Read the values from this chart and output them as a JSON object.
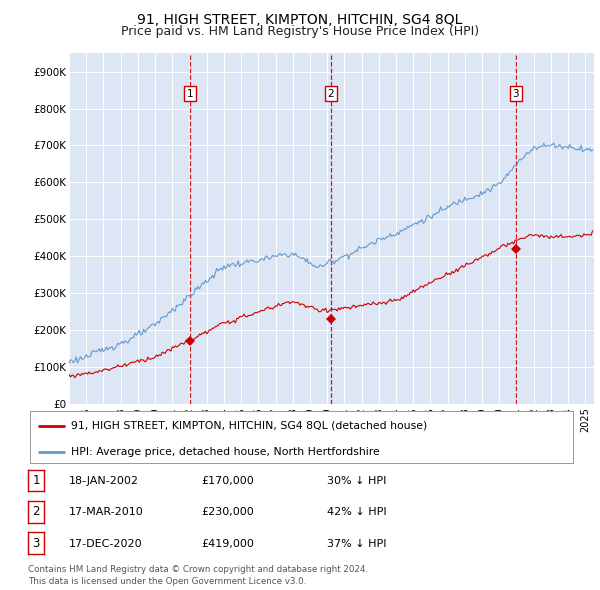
{
  "title": "91, HIGH STREET, KIMPTON, HITCHIN, SG4 8QL",
  "subtitle": "Price paid vs. HM Land Registry's House Price Index (HPI)",
  "ylabel_ticks": [
    "£0",
    "£100K",
    "£200K",
    "£300K",
    "£400K",
    "£500K",
    "£600K",
    "£700K",
    "£800K",
    "£900K"
  ],
  "ytick_values": [
    0,
    100000,
    200000,
    300000,
    400000,
    500000,
    600000,
    700000,
    800000,
    900000
  ],
  "ylim": [
    0,
    950000
  ],
  "xlim_start": 1995.0,
  "xlim_end": 2025.5,
  "sale_dates": [
    2002.05,
    2010.21,
    2020.96
  ],
  "sale_prices": [
    170000,
    230000,
    419000
  ],
  "sale_labels": [
    "1",
    "2",
    "3"
  ],
  "vline_color": "#cc0000",
  "plot_bg_color": "#dce6f5",
  "fig_bg_color": "#ffffff",
  "hpi_line_color": "#6699cc",
  "price_line_color": "#cc0000",
  "grid_color": "#ffffff",
  "legend_label_red": "91, HIGH STREET, KIMPTON, HITCHIN, SG4 8QL (detached house)",
  "legend_label_blue": "HPI: Average price, detached house, North Hertfordshire",
  "table_entries": [
    {
      "num": "1",
      "date": "18-JAN-2002",
      "price": "£170,000",
      "hpi": "30% ↓ HPI"
    },
    {
      "num": "2",
      "date": "17-MAR-2010",
      "price": "£230,000",
      "hpi": "42% ↓ HPI"
    },
    {
      "num": "3",
      "date": "17-DEC-2020",
      "price": "£419,000",
      "hpi": "37% ↓ HPI"
    }
  ],
  "footer": "Contains HM Land Registry data © Crown copyright and database right 2024.\nThis data is licensed under the Open Government Licence v3.0.",
  "title_fontsize": 10,
  "subtitle_fontsize": 9
}
